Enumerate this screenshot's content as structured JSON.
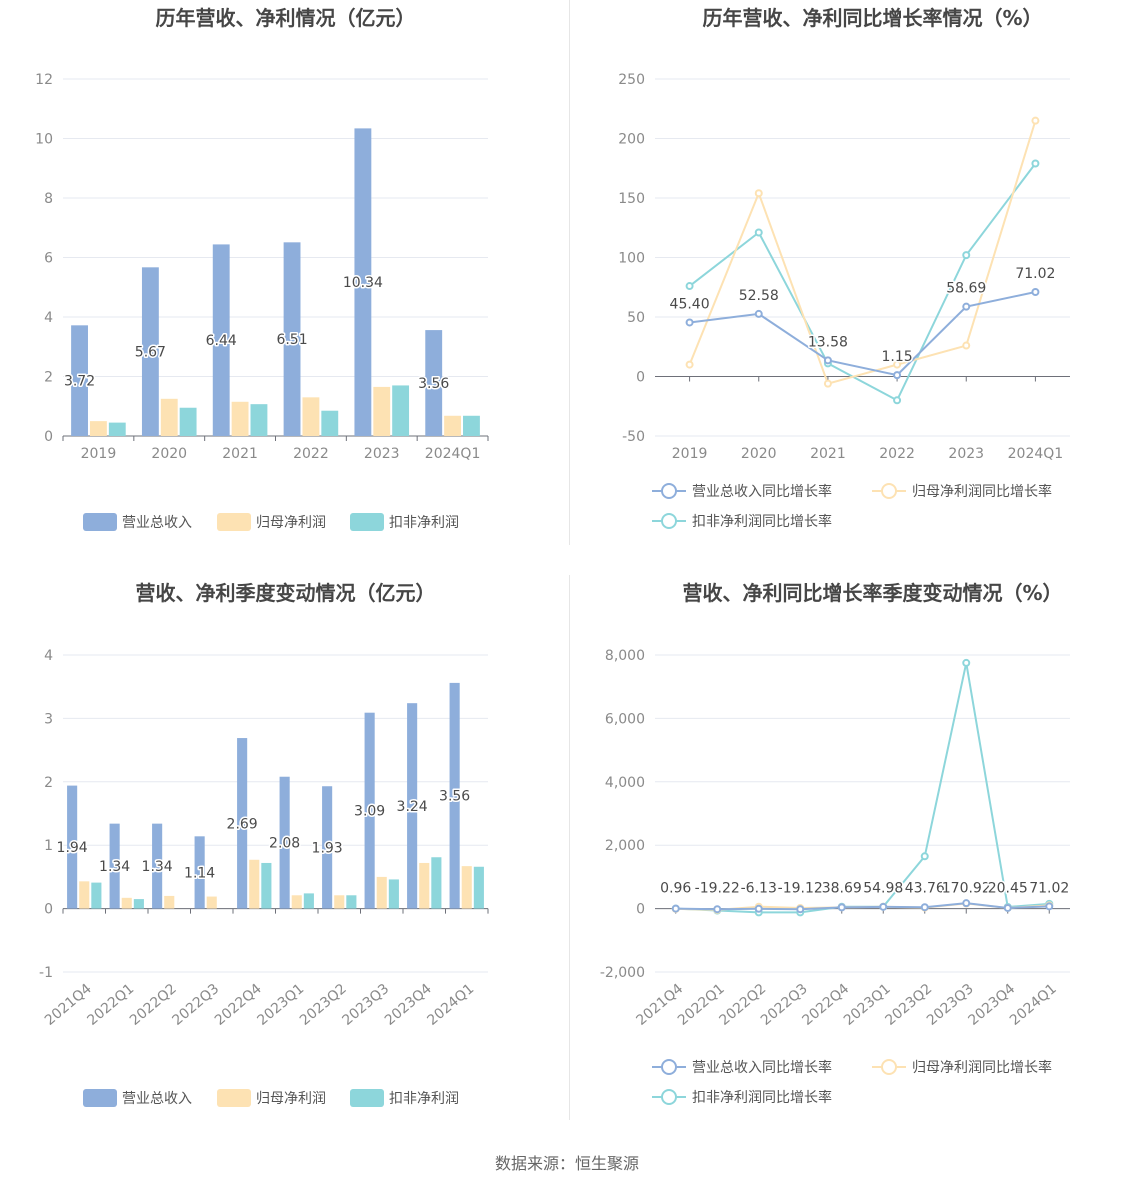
{
  "footer": {
    "source": "数据来源：恒生聚源"
  },
  "colors": {
    "revenue": "#8eaedb",
    "net_profit": "#fde2b3",
    "deducted_profit": "#8dd6db",
    "line_revenue": "#8eaedb",
    "line_net": "#fde2b3",
    "line_deducted": "#8dd6db",
    "grid": "#e6e9f0",
    "axis": "#6e7079"
  },
  "chart_data": [
    {
      "type": "bar",
      "title": "历年营收、净利情况（亿元）",
      "categories": [
        "2019",
        "2020",
        "2021",
        "2022",
        "2023",
        "2024Q1"
      ],
      "series": [
        {
          "name": "营业总收入",
          "values": [
            3.72,
            5.67,
            6.44,
            6.51,
            10.34,
            3.56
          ],
          "labels": [
            "3.72",
            "5.67",
            "6.44",
            "6.51",
            "10.34",
            "3.56"
          ]
        },
        {
          "name": "归母净利润",
          "values": [
            0.5,
            1.25,
            1.15,
            1.3,
            1.65,
            0.68
          ]
        },
        {
          "name": "扣非净利润",
          "values": [
            0.45,
            0.95,
            1.07,
            0.85,
            1.7,
            0.68
          ]
        }
      ],
      "yticks": [
        "0",
        "2",
        "4",
        "6",
        "8",
        "10",
        "12"
      ],
      "ylim": [
        0,
        12
      ],
      "legend": "bottom"
    },
    {
      "type": "line",
      "title": "历年营收、净利同比增长率情况（%）",
      "categories": [
        "2019",
        "2020",
        "2021",
        "2022",
        "2023",
        "2024Q1"
      ],
      "series": [
        {
          "name": "营业总收入同比增长率",
          "values": [
            45.4,
            52.58,
            13.58,
            1.15,
            58.69,
            71.02
          ],
          "labels": [
            "45.40",
            "52.58",
            "13.58",
            "1.15",
            "58.69",
            "71.02"
          ]
        },
        {
          "name": "归母净利润同比增长率",
          "values": [
            10,
            154,
            -6,
            10,
            26,
            215
          ]
        },
        {
          "name": "扣非净利润同比增长率",
          "values": [
            76,
            121,
            11,
            -20,
            102,
            179
          ]
        }
      ],
      "yticks": [
        "-50",
        "0",
        "50",
        "100",
        "150",
        "200",
        "250"
      ],
      "ylim": [
        -50,
        250
      ],
      "legend": "bottom"
    },
    {
      "type": "bar",
      "title": "营收、净利季度变动情况（亿元）",
      "categories": [
        "2021Q4",
        "2022Q1",
        "2022Q2",
        "2022Q3",
        "2022Q4",
        "2023Q1",
        "2023Q2",
        "2023Q3",
        "2023Q4",
        "2024Q1"
      ],
      "series": [
        {
          "name": "营业总收入",
          "values": [
            1.94,
            1.34,
            1.34,
            1.14,
            2.69,
            2.08,
            1.93,
            3.09,
            3.24,
            3.56
          ],
          "labels": [
            "1.94",
            "1.34",
            "1.34",
            "1.14",
            "2.69",
            "2.08",
            "1.93",
            "3.09",
            "3.24",
            "3.56"
          ]
        },
        {
          "name": "归母净利润",
          "values": [
            0.43,
            0.17,
            0.2,
            0.19,
            0.77,
            0.21,
            0.21,
            0.5,
            0.72,
            0.67
          ]
        },
        {
          "name": "扣非净利润",
          "values": [
            0.41,
            0.15,
            0.0,
            0.0,
            0.72,
            0.24,
            0.21,
            0.46,
            0.81,
            0.66
          ]
        }
      ],
      "yticks": [
        "-1",
        "0",
        "1",
        "2",
        "3",
        "4"
      ],
      "ylim": [
        -1,
        4
      ],
      "legend": "bottom"
    },
    {
      "type": "line",
      "title": "营收、净利同比增长率季度变动情况（%）",
      "categories": [
        "2021Q4",
        "2022Q1",
        "2022Q2",
        "2022Q3",
        "2022Q4",
        "2023Q1",
        "2023Q2",
        "2023Q3",
        "2023Q4",
        "2024Q1"
      ],
      "series": [
        {
          "name": "营业总收入同比增长率",
          "values": [
            0.96,
            -19.22,
            -6.13,
            -19.12,
            38.69,
            54.98,
            43.76,
            170.92,
            20.45,
            71.02
          ],
          "labels": [
            "0.96",
            "-19.22",
            "-6.13",
            "-19.12",
            "38.69",
            "54.98",
            "43.76",
            "170.92",
            "20.45",
            "71.02"
          ]
        },
        {
          "name": "归母净利润同比增长率",
          "values": [
            -10,
            -40,
            60,
            20,
            40,
            60,
            30,
            160,
            20,
            100
          ]
        },
        {
          "name": "扣非净利润同比增长率",
          "values": [
            0,
            -60,
            -120,
            -120,
            60,
            60,
            1650,
            7750,
            50,
            150
          ]
        }
      ],
      "yticks": [
        "-2,000",
        "0",
        "2,000",
        "4,000",
        "6,000",
        "8,000"
      ],
      "ylim": [
        -2000,
        8000
      ],
      "legend": "bottom"
    }
  ]
}
